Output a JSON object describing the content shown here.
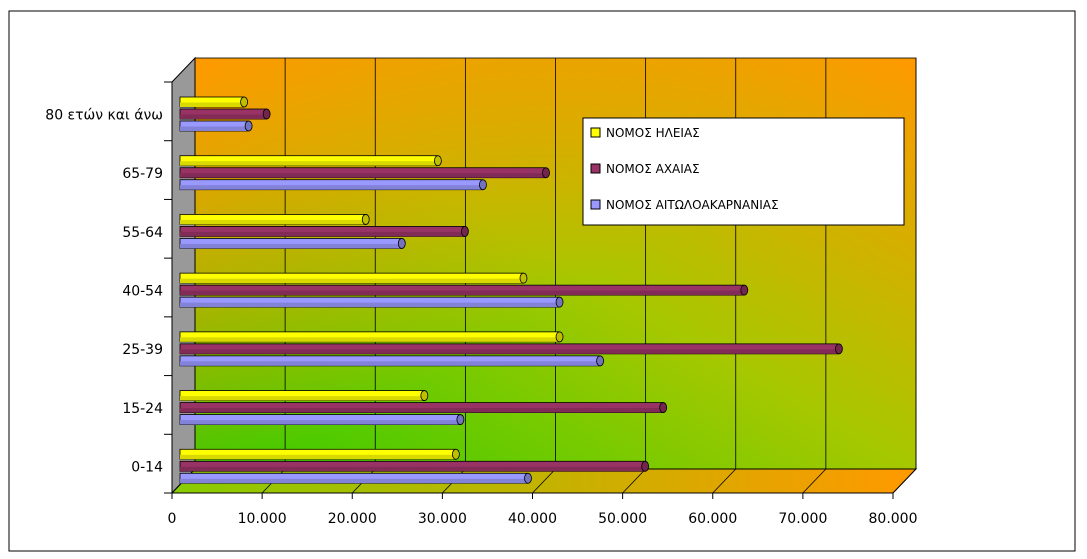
{
  "chart_data": {
    "type": "bar",
    "orientation": "horizontal",
    "style": "3d-cylinder",
    "categories": [
      "0-14",
      "15-24",
      "25-39",
      "40-54",
      "55-64",
      "65-79",
      "80 ετών και άνω"
    ],
    "series": [
      {
        "name": "ΝΟΜΟΣ ΗΛΕΙΑΣ",
        "color": "#ffff00",
        "values": [
          31500,
          28000,
          43000,
          39000,
          21500,
          29500,
          8000
        ]
      },
      {
        "name": "ΝΟΜΟΣ ΑΧΑΙΑΣ",
        "color": "#993366",
        "values": [
          52500,
          54500,
          74000,
          63500,
          32500,
          41500,
          10500
        ]
      },
      {
        "name": "ΝΟΜΟΣ ΑΙΤΩΛΟΑΚΑΡΝΑΝΙΑΣ",
        "color": "#9999ff",
        "values": [
          39500,
          32000,
          47500,
          43000,
          25500,
          34500,
          8500
        ]
      }
    ],
    "xlim": [
      0,
      80000
    ],
    "x_ticks": [
      "0",
      "10.000",
      "20.000",
      "30.000",
      "40.000",
      "50.000",
      "60.000",
      "70.000",
      "80.000"
    ],
    "grid": true,
    "legend": "right",
    "background": "gradient-green-orange",
    "title": "",
    "xlabel": "",
    "ylabel": ""
  }
}
